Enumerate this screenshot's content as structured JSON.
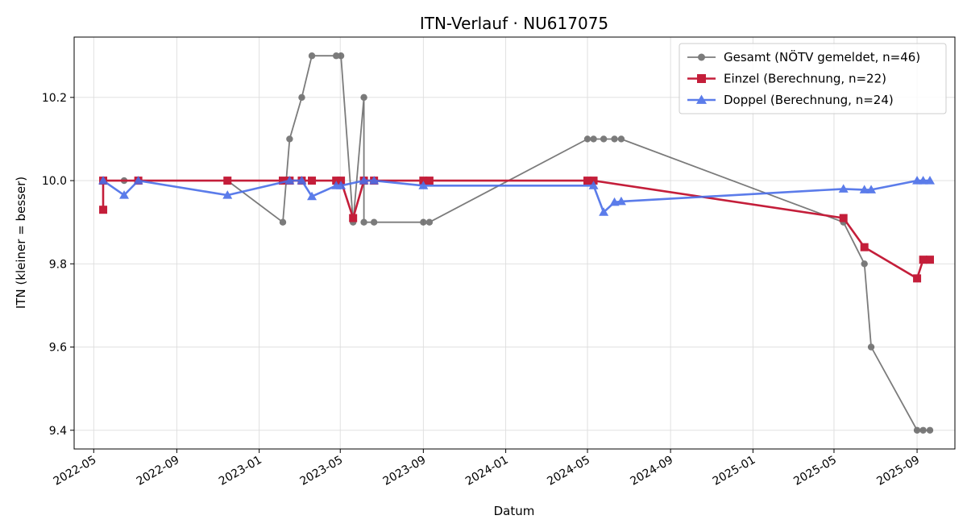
{
  "chart_data": {
    "type": "line",
    "title": "ITN-Verlauf · NU617075",
    "xlabel": "Datum",
    "ylabel": "ITN  (kleiner = besser)",
    "x_type": "date",
    "xlim": [
      "2022-04-02",
      "2025-10-27"
    ],
    "ylim": [
      9.355,
      10.345
    ],
    "x_ticks": [
      "2022-05-01",
      "2022-09-01",
      "2023-01-01",
      "2023-05-01",
      "2023-09-01",
      "2024-01-01",
      "2024-05-01",
      "2024-09-01",
      "2025-01-01",
      "2025-05-01",
      "2025-09-01"
    ],
    "x_tick_labels": [
      "2022-05",
      "2022-09",
      "2023-01",
      "2023-05",
      "2023-09",
      "2024-01",
      "2024-05",
      "2024-09",
      "2025-01",
      "2025-05",
      "2025-09"
    ],
    "y_ticks": [
      9.4,
      9.6,
      9.8,
      10.0,
      10.2
    ],
    "y_tick_labels": [
      "9.4",
      "9.6",
      "9.8",
      "10.0",
      "10.2"
    ],
    "grid": true,
    "legend_position": "top-right",
    "series": [
      {
        "name": "Gesamt (NÖTV gemeldet, n=46)",
        "color": "#444444",
        "marker": "circle",
        "opacity": 0.7,
        "line_width": 1.8,
        "points": [
          [
            "2022-05-15",
            10.0
          ],
          [
            "2022-06-15",
            10.0
          ],
          [
            "2022-07-06",
            10.0
          ],
          [
            "2022-11-15",
            10.0
          ],
          [
            "2023-02-05",
            9.9
          ],
          [
            "2023-02-15",
            10.1
          ],
          [
            "2023-03-05",
            10.2
          ],
          [
            "2023-03-20",
            10.3
          ],
          [
            "2023-04-25",
            10.3
          ],
          [
            "2023-05-02",
            10.3
          ],
          [
            "2023-05-20",
            9.9
          ],
          [
            "2023-06-05",
            10.2
          ],
          [
            "2023-06-05",
            9.9
          ],
          [
            "2023-06-20",
            9.9
          ],
          [
            "2023-09-01",
            9.9
          ],
          [
            "2023-09-10",
            9.9
          ],
          [
            "2024-05-01",
            10.1
          ],
          [
            "2024-05-10",
            10.1
          ],
          [
            "2024-05-25",
            10.1
          ],
          [
            "2024-06-10",
            10.1
          ],
          [
            "2024-06-20",
            10.1
          ],
          [
            "2025-05-15",
            9.9
          ],
          [
            "2025-06-15",
            9.8
          ],
          [
            "2025-06-25",
            9.6
          ],
          [
            "2025-09-01",
            9.4
          ],
          [
            "2025-09-10",
            9.4
          ],
          [
            "2025-09-20",
            9.4
          ]
        ]
      },
      {
        "name": "Einzel (Berechnung, n=22)",
        "color": "#c41e3a",
        "marker": "square",
        "opacity": 1,
        "line_width": 2.6,
        "points": [
          [
            "2022-05-15",
            9.93
          ],
          [
            "2022-05-15",
            10.0
          ],
          [
            "2022-07-06",
            10.0
          ],
          [
            "2022-11-15",
            10.0
          ],
          [
            "2023-02-05",
            10.0
          ],
          [
            "2023-02-15",
            10.0
          ],
          [
            "2023-03-05",
            10.0
          ],
          [
            "2023-03-20",
            10.0
          ],
          [
            "2023-04-25",
            10.0
          ],
          [
            "2023-05-02",
            10.0
          ],
          [
            "2023-05-20",
            9.91
          ],
          [
            "2023-06-05",
            10.0
          ],
          [
            "2023-06-20",
            10.0
          ],
          [
            "2023-09-01",
            10.0
          ],
          [
            "2023-09-10",
            10.0
          ],
          [
            "2024-05-01",
            10.0
          ],
          [
            "2024-05-10",
            10.0
          ],
          [
            "2025-05-15",
            9.91
          ],
          [
            "2025-06-15",
            9.84
          ],
          [
            "2025-09-01",
            9.765
          ],
          [
            "2025-09-10",
            9.81
          ],
          [
            "2025-09-20",
            9.81
          ]
        ]
      },
      {
        "name": "Doppel (Berechnung, n=24)",
        "color": "#4a6ee8",
        "marker": "triangle",
        "opacity": 0.9,
        "line_width": 2.6,
        "points": [
          [
            "2022-05-15",
            10.0
          ],
          [
            "2022-06-15",
            9.965
          ],
          [
            "2022-07-06",
            10.0
          ],
          [
            "2022-11-15",
            9.965
          ],
          [
            "2023-02-15",
            10.0
          ],
          [
            "2023-03-05",
            10.0
          ],
          [
            "2023-03-20",
            9.962
          ],
          [
            "2023-04-25",
            9.988
          ],
          [
            "2023-05-02",
            9.988
          ],
          [
            "2023-06-05",
            10.0
          ],
          [
            "2023-06-20",
            10.0
          ],
          [
            "2023-09-01",
            9.988
          ],
          [
            "2024-05-10",
            9.988
          ],
          [
            "2024-05-25",
            9.924
          ],
          [
            "2024-06-10",
            9.948
          ],
          [
            "2024-06-20",
            9.95
          ],
          [
            "2025-05-15",
            9.98
          ],
          [
            "2025-06-15",
            9.978
          ],
          [
            "2025-06-25",
            9.978
          ],
          [
            "2025-09-01",
            10.0
          ],
          [
            "2025-09-10",
            10.0
          ],
          [
            "2025-09-20",
            10.0
          ]
        ]
      }
    ]
  }
}
